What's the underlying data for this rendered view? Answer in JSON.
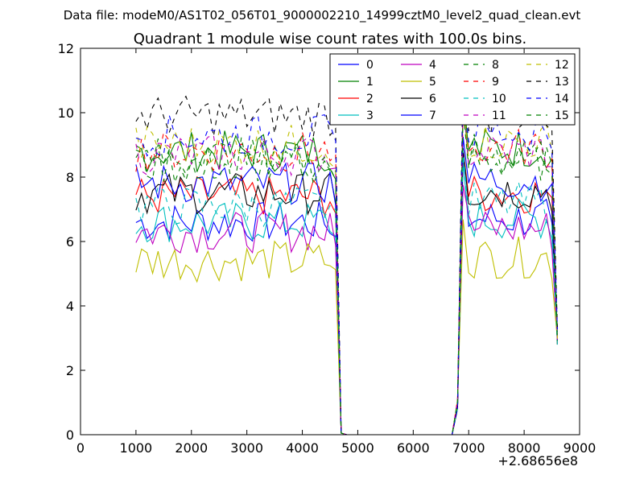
{
  "figure": {
    "suptitle": "Data file: modeM0/AS1T02_056T01_9000002210_14999cztM0_level2_quad_clean.evt"
  },
  "chart_data": {
    "type": "line",
    "title": "Quadrant 1 module wise count rates with 100.0s bins.",
    "xlabel": "",
    "ylabel": "",
    "x_offset_label": "+2.68656e8",
    "xlim": [
      0,
      9000
    ],
    "ylim": [
      0,
      12
    ],
    "xticks": [
      0,
      1000,
      2000,
      3000,
      4000,
      5000,
      6000,
      7000,
      8000,
      9000
    ],
    "yticks": [
      0,
      2,
      4,
      6,
      8,
      10,
      12
    ],
    "grid": false,
    "legend": {
      "placement": "top-right",
      "columns": 4
    },
    "x": [
      1000,
      1100,
      1200,
      1300,
      1400,
      1500,
      1600,
      1700,
      1800,
      1900,
      2000,
      2100,
      2200,
      2300,
      2400,
      2500,
      2600,
      2700,
      2800,
      2900,
      3000,
      3100,
      3200,
      3300,
      3400,
      3500,
      3600,
      3700,
      3800,
      3900,
      4000,
      4100,
      4200,
      4300,
      4400,
      4500,
      4600,
      4700,
      4800,
      4900,
      5000,
      5100,
      5200,
      5300,
      5400,
      5500,
      5600,
      5700,
      5800,
      5900,
      6000,
      6100,
      6200,
      6300,
      6400,
      6500,
      6600,
      6700,
      6800,
      6900,
      7000,
      7100,
      7200,
      7300,
      7400,
      7500,
      7600,
      7700,
      7800,
      7900,
      8000,
      8100,
      8200,
      8300,
      8400,
      8500,
      8600
    ],
    "series": [
      {
        "name": "0",
        "color": "#0000ff",
        "dash": "solid",
        "base": 6.6
      },
      {
        "name": "1",
        "color": "#008000",
        "dash": "solid",
        "base": 8.8
      },
      {
        "name": "2",
        "color": "#ff0000",
        "dash": "solid",
        "base": 7.4
      },
      {
        "name": "3",
        "color": "#00bfbf",
        "dash": "solid",
        "base": 6.6
      },
      {
        "name": "4",
        "color": "#bf00bf",
        "dash": "solid",
        "base": 6.3
      },
      {
        "name": "5",
        "color": "#bfbf00",
        "dash": "solid",
        "base": 5.4
      },
      {
        "name": "6",
        "color": "#000000",
        "dash": "solid",
        "base": 7.5
      },
      {
        "name": "7",
        "color": "#0000ff",
        "dash": "solid",
        "base": 7.8
      },
      {
        "name": "8",
        "color": "#008000",
        "dash": "dashed",
        "base": 8.4
      },
      {
        "name": "9",
        "color": "#ff0000",
        "dash": "dashed",
        "base": 8.8
      },
      {
        "name": "10",
        "color": "#00bfbf",
        "dash": "dashed",
        "base": 7.1
      },
      {
        "name": "11",
        "color": "#bf00bf",
        "dash": "dashed",
        "base": 8.7
      },
      {
        "name": "12",
        "color": "#bfbf00",
        "dash": "dashed",
        "base": 9.0
      },
      {
        "name": "13",
        "color": "#000000",
        "dash": "dashed",
        "base": 9.9
      },
      {
        "name": "14",
        "color": "#0000ff",
        "dash": "dashed",
        "base": 9.3
      },
      {
        "name": "15",
        "color": "#008000",
        "dash": "dashed",
        "base": 8.6
      }
    ]
  }
}
